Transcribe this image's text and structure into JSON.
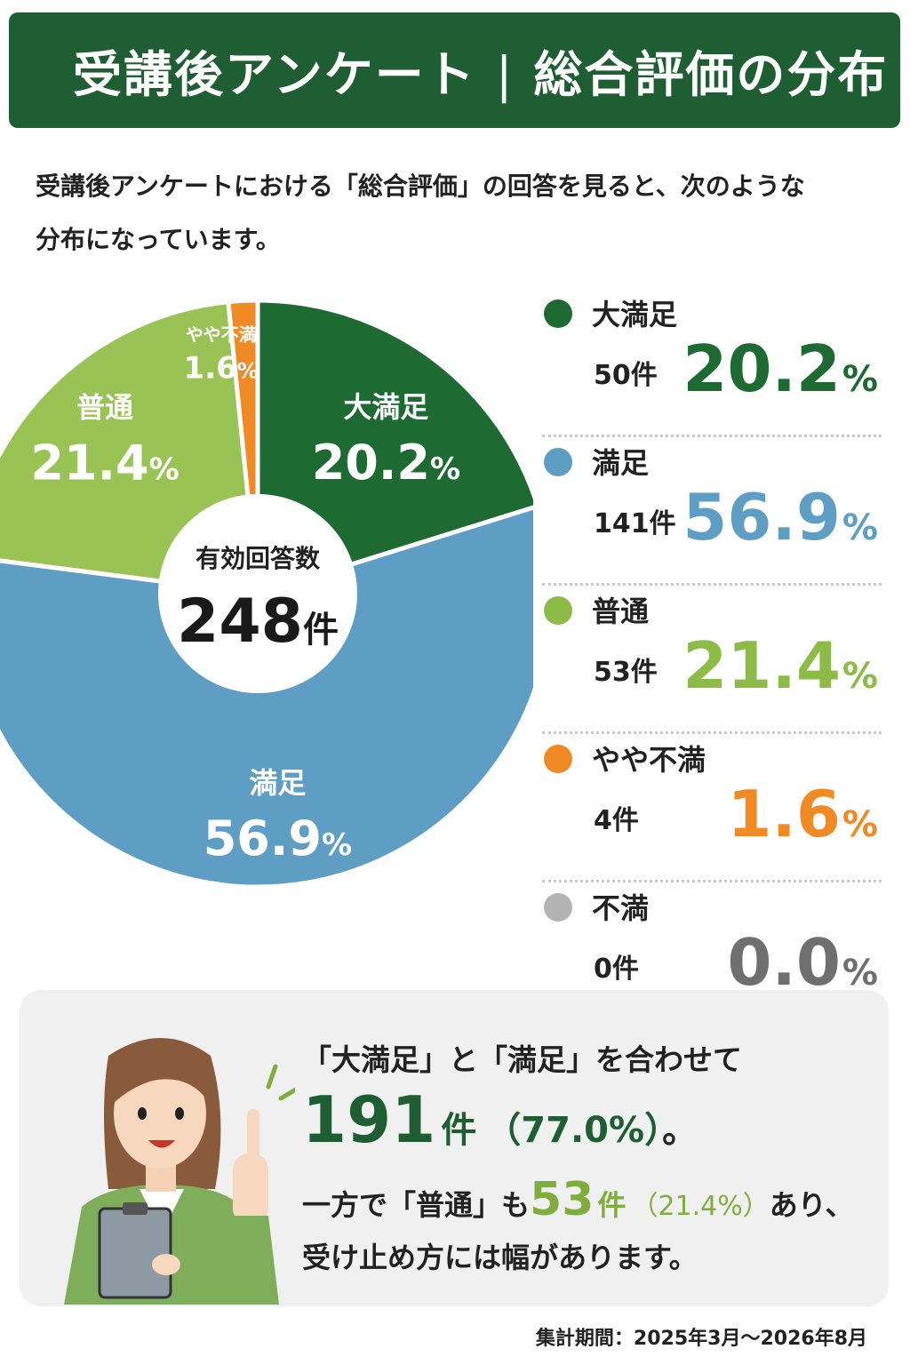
{
  "header": {
    "title_left": "受講後アンケート",
    "separator": "|",
    "title_right": "総合評価の分布"
  },
  "intro": {
    "line1": "受講後アンケートにおける「総合評価」の回答を見ると、次のような",
    "line2": "分布になっています。"
  },
  "chart_data": {
    "type": "pie",
    "center_label": "有効回答数",
    "center_value": "248",
    "center_unit": "件",
    "slices": [
      {
        "label": "大満足",
        "count": 50,
        "percent": 20.2,
        "color": "#1e6a33",
        "text_color": "#ffffff"
      },
      {
        "label": "満足",
        "count": 141,
        "percent": 56.9,
        "color": "#5e9ec4",
        "text_color": "#ffffff"
      },
      {
        "label": "普通",
        "count": 53,
        "percent": 21.4,
        "color": "#99c455",
        "text_color": "#ffffff"
      },
      {
        "label": "やや不満",
        "count": 4,
        "percent": 1.6,
        "color": "#f08a24",
        "text_color": "#ffffff"
      },
      {
        "label": "不満",
        "count": 0,
        "percent": 0.0,
        "color": "#a7a7a7",
        "text_color": "#ffffff"
      }
    ],
    "legend": [
      {
        "label": "大満足",
        "count": "50",
        "percent": "20.2",
        "color": "#1e6a33"
      },
      {
        "label": "満足",
        "count": "141",
        "percent": "56.9",
        "color": "#5e9ec4"
      },
      {
        "label": "普通",
        "count": "53",
        "percent": "21.4",
        "color": "#8cbb48"
      },
      {
        "label": "やや不満",
        "count": "4",
        "percent": "1.6",
        "color": "#f08a24"
      },
      {
        "label": "不満",
        "count": "0",
        "percent": "0.0",
        "color": "#6f6f6f",
        "dot_color": "#b3b3b3"
      }
    ],
    "count_unit": "件",
    "percent_unit": "%"
  },
  "summary": {
    "line1": "「大満足」と「満足」を合わせて",
    "total_count": "191",
    "total_unit": "件",
    "total_percent": "（77.0%）",
    "total_end": "。",
    "line3_pre": "一方で「普通」も",
    "mid_count": "53",
    "mid_unit": "件",
    "mid_percent": "（21.4%）",
    "line3_post": "あり、",
    "line4": "受け止め方には幅があります。"
  },
  "footer": {
    "period": "集計期間：2025年3月〜2026年8月"
  }
}
